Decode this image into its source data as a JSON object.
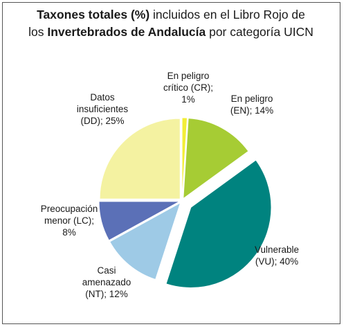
{
  "chart_data": {
    "type": "pie",
    "title": {
      "line1_bold": "Taxones totales (%)",
      "line1_rest": " incluidos en el Libro Rojo de",
      "line2_pre": "los ",
      "line2_bold": "Invertebrados de Andalucía",
      "line2_rest": " por categoría UICN"
    },
    "slices": [
      {
        "category": "En peligro crítico (CR)",
        "value": 1,
        "color": "#F3EE38",
        "label_lines": [
          "En peligro",
          "crítico (CR);",
          "1%"
        ]
      },
      {
        "category": "En peligro (EN)",
        "value": 14,
        "color": "#A6CC34",
        "label_lines": [
          "En peligro",
          "(EN); 14%"
        ]
      },
      {
        "category": "Vulnerable (VU)",
        "value": 40,
        "color": "#00837F",
        "label_lines": [
          "Vulnerable",
          "(VU); 40%"
        ]
      },
      {
        "category": "Casi amenazado (NT)",
        "value": 12,
        "color": "#9ECAE6",
        "label_lines": [
          "Casi",
          "amenazado",
          "(NT); 12%"
        ]
      },
      {
        "category": "Preocupación menor (LC)",
        "value": 8,
        "color": "#5B70B7",
        "label_lines": [
          "Preocupación",
          "menor (LC);",
          "8%"
        ]
      },
      {
        "category": "Datos insuficientes (DD)",
        "value": 25,
        "color": "#F4F2A1",
        "label_lines": [
          "Datos",
          "insuficientes",
          "(DD); 25%"
        ]
      }
    ]
  }
}
